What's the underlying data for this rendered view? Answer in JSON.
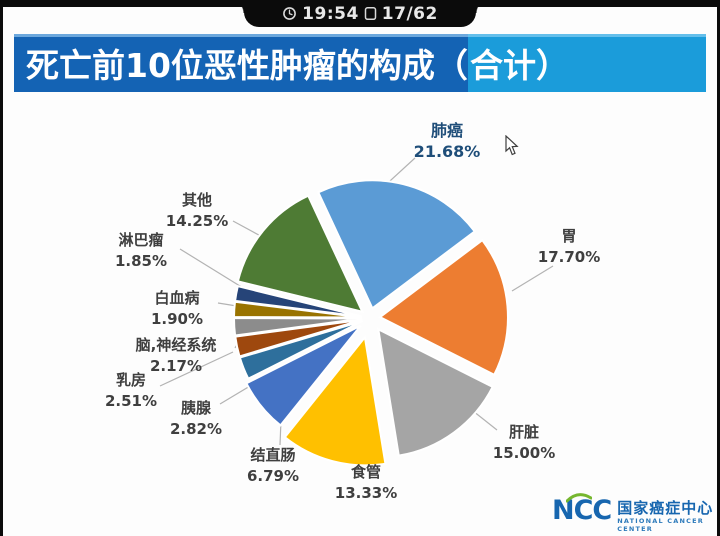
{
  "status_bar": {
    "time": "19:54",
    "page": "17/62"
  },
  "title": {
    "prefix": "死亡前10位恶性肿瘤的构成（",
    "highlight": "合计）"
  },
  "chart_data": {
    "type": "pie",
    "title": "死亡前10位恶性肿瘤的构成（合计）",
    "categories": [
      "肺癌",
      "胃",
      "肝脏",
      "食管",
      "结直肠",
      "胰腺",
      "乳房",
      "脑,神经系统",
      "白血病",
      "淋巴瘤",
      "其他"
    ],
    "values": [
      21.68,
      17.7,
      15.0,
      13.33,
      6.79,
      2.82,
      2.51,
      2.17,
      1.9,
      1.85,
      14.25
    ],
    "slices": [
      {
        "label": "肺癌",
        "value": 21.68,
        "pct_text": "21.68%",
        "color": "#5B9BD5"
      },
      {
        "label": "胃",
        "value": 17.7,
        "pct_text": "17.70%",
        "color": "#ED7D31"
      },
      {
        "label": "肝脏",
        "value": 15.0,
        "pct_text": "15.00%",
        "color": "#A5A5A5"
      },
      {
        "label": "食管",
        "value": 13.33,
        "pct_text": "13.33%",
        "color": "#FFC000"
      },
      {
        "label": "结直肠",
        "value": 6.79,
        "pct_text": "6.79%",
        "color": "#4472C4"
      },
      {
        "label": "胰腺",
        "value": 2.82,
        "pct_text": "2.82%",
        "color": "#2E6F9C"
      },
      {
        "label": "乳房",
        "value": 2.51,
        "pct_text": "2.51%",
        "color": "#9E480E"
      },
      {
        "label": "脑,神经系统",
        "value": 2.17,
        "pct_text": "2.17%",
        "color": "#8C8C8C"
      },
      {
        "label": "白血病",
        "value": 1.9,
        "pct_text": "1.90%",
        "color": "#997300"
      },
      {
        "label": "淋巴瘤",
        "value": 1.85,
        "pct_text": "1.85%",
        "color": "#264478"
      },
      {
        "label": "其他",
        "value": 14.25,
        "pct_text": "14.25%",
        "color": "#4E7B34"
      }
    ],
    "start_angle_deg": -25,
    "direction": "clockwise",
    "exploded": true,
    "legend_position": "none",
    "label_color": "#3F3F3F",
    "highlight_label_color": "#1F4E79",
    "leader_line_color": "#B3B3B3"
  },
  "logo": {
    "abbr": "NCC",
    "name_cn": "国家癌症中心",
    "name_en": "NATIONAL CANCER CENTER",
    "blue": "#1766AF",
    "green": "#76B72F"
  }
}
